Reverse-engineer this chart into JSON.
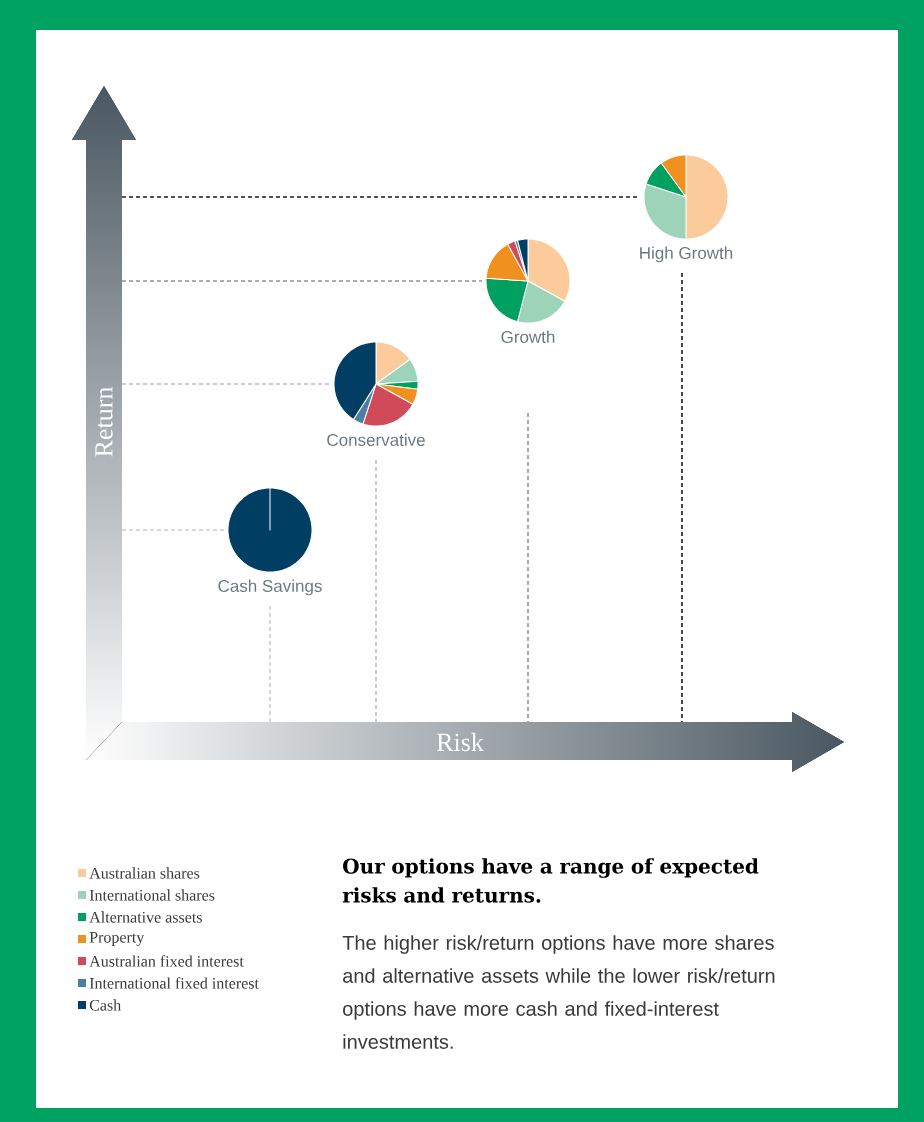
{
  "chart_data": [
    {
      "type": "pie",
      "title": "Cash Savings",
      "categories": [
        "Australian shares",
        "International shares",
        "Alternative assets",
        "Property",
        "Australian fixed interest",
        "International fixed interest",
        "Cash"
      ],
      "values": [
        0,
        0,
        0,
        0,
        0,
        0,
        100
      ],
      "colors": [
        "#fbcb9b",
        "#9dd3b8",
        "#00a060",
        "#f0901e",
        "#d14a5a",
        "#4a7fa0",
        "#003f63"
      ],
      "legend": "bottom left"
    },
    {
      "type": "pie",
      "title": "Conservative",
      "values": [
        15,
        9,
        3,
        6,
        22,
        4,
        41
      ],
      "colors": [
        "#fbcb9b",
        "#9dd3b8",
        "#00a060",
        "#f0901e",
        "#d14a5a",
        "#4a7fa0",
        "#003f63"
      ]
    },
    {
      "type": "pie",
      "title": "Growth",
      "values": [
        33,
        21,
        22,
        16,
        3,
        1,
        4
      ],
      "colors": [
        "#fbcb9b",
        "#9dd3b8",
        "#00a060",
        "#f0901e",
        "#d14a5a",
        "#4a7fa0",
        "#003f63"
      ]
    },
    {
      "type": "pie",
      "title": "High Growth",
      "values": [
        50,
        30,
        10,
        10,
        0,
        0,
        0
      ],
      "colors": [
        "#fbcb9b",
        "#9dd3b8",
        "#00a060",
        "#f0901e",
        "#d14a5a",
        "#4a7fa0",
        "#003f63"
      ]
    },
    {
      "type": "other",
      "xlabel": "Risk",
      "ylabel": "Return",
      "title": "Our options have a range of expected risks and returns.",
      "annotations": [
        "The higher risk/return options have more shares and alternative assets while the lower risk/return options have more cash and fixed-interest investments."
      ]
    }
  ]
}
